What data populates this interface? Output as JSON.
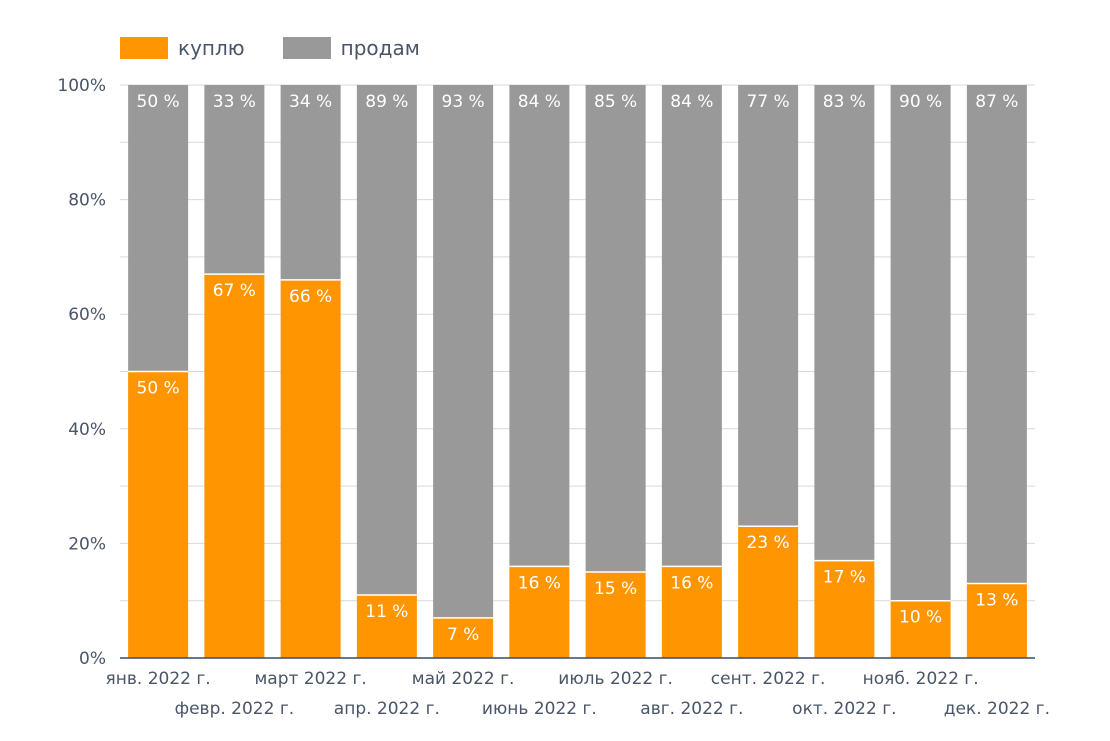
{
  "colors": {
    "buy": "#ff9500",
    "sell": "#999999",
    "grid": "#d9d9d9",
    "axis": "#3b4a66",
    "text": "#4a5568"
  },
  "chart_data": {
    "type": "bar",
    "stacked": true,
    "normalized": true,
    "categories": [
      "янв. 2022 г.",
      "февр. 2022 г.",
      "март 2022 г.",
      "апр. 2022 г.",
      "май 2022 г.",
      "июнь 2022 г.",
      "июль 2022 г.",
      "авг. 2022 г.",
      "сент. 2022 г.",
      "окт. 2022 г.",
      "нояб. 2022 г.",
      "дек. 2022 г."
    ],
    "series": [
      {
        "name": "куплю",
        "values": [
          50,
          67,
          66,
          11,
          7,
          16,
          15,
          16,
          23,
          17,
          10,
          13
        ],
        "labels": [
          "50 %",
          "67 %",
          "66 %",
          "11 %",
          "7 %",
          "16 %",
          "15 %",
          "16 %",
          "23 %",
          "17 %",
          "10 %",
          "13 %"
        ]
      },
      {
        "name": "продам",
        "values": [
          50,
          33,
          34,
          89,
          93,
          84,
          85,
          84,
          77,
          83,
          90,
          87
        ],
        "labels": [
          "50 %",
          "33 %",
          "34 %",
          "89 %",
          "93 %",
          "84 %",
          "85 %",
          "84 %",
          "77 %",
          "83 %",
          "90 %",
          "87 %"
        ]
      }
    ],
    "ylim": [
      0,
      100
    ],
    "yticks": [
      0,
      20,
      40,
      60,
      80,
      100
    ],
    "ytick_labels": [
      "0%",
      "20%",
      "40%",
      "60%",
      "80%",
      "100%"
    ],
    "grid": true,
    "legend_position": "top-left"
  }
}
